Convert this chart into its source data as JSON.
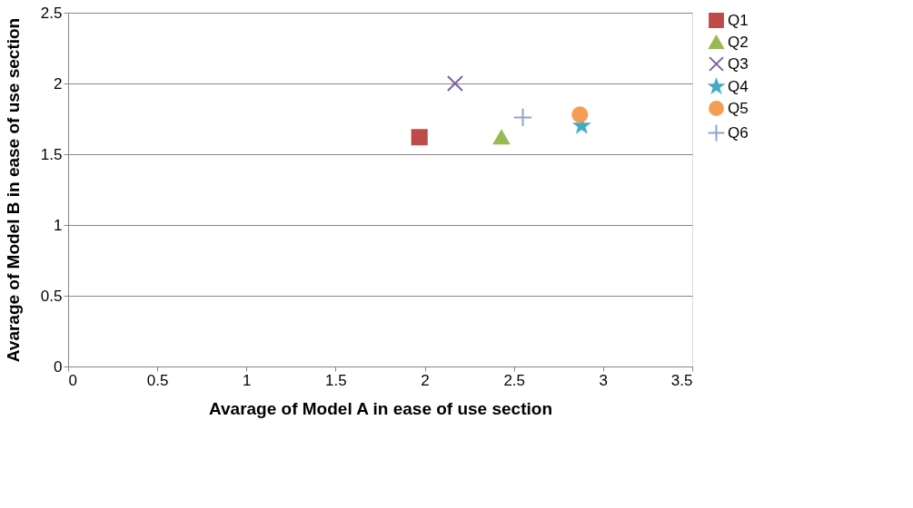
{
  "chart_data": {
    "type": "scatter",
    "xlabel": "Avarage of Model A in ease of use section",
    "ylabel": "Avarage of Model B in ease of use section",
    "xlim": [
      0,
      3.5
    ],
    "xticks": [
      0,
      0.5,
      1,
      1.5,
      2,
      2.5,
      3,
      3.5
    ],
    "ylim": [
      0,
      2.5
    ],
    "yticks": [
      0,
      0.5,
      1,
      1.5,
      2,
      2.5
    ],
    "grid": "y",
    "legend": "right",
    "series": [
      {
        "name": "Q1",
        "color": "#be4b48",
        "marker": "square",
        "x": [
          1.97
        ],
        "values": [
          1.62
        ]
      },
      {
        "name": "Q2",
        "color": "#98b954",
        "marker": "triangle",
        "x": [
          2.43
        ],
        "values": [
          1.62
        ]
      },
      {
        "name": "Q3",
        "color": "#7d60a0",
        "marker": "cross",
        "x": [
          2.17
        ],
        "values": [
          2.0
        ]
      },
      {
        "name": "Q4",
        "color": "#46aac5",
        "marker": "star",
        "x": [
          2.88
        ],
        "values": [
          1.7
        ]
      },
      {
        "name": "Q5",
        "color": "#f59d56",
        "marker": "circle",
        "x": [
          2.87
        ],
        "values": [
          1.78
        ]
      },
      {
        "name": "Q6",
        "color": "#8ea5cc",
        "marker": "plus",
        "x": [
          2.55
        ],
        "values": [
          1.76
        ]
      }
    ]
  }
}
